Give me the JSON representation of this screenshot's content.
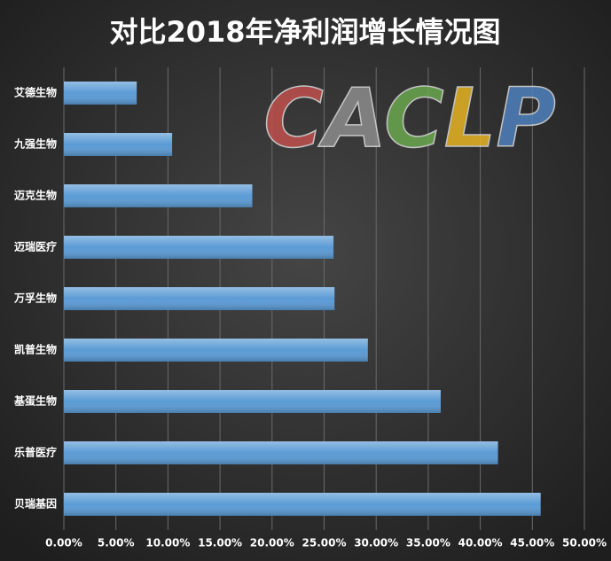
{
  "chart_data": {
    "type": "barh",
    "title": "对比2018年净利润增长情况图",
    "watermark": {
      "letters": [
        "C",
        "A",
        "C",
        "L",
        "P"
      ],
      "colors": [
        "#c0504d",
        "#8c8c8c",
        "#6aa84f",
        "#e6b422",
        "#4f81bd"
      ]
    },
    "categories": [
      "艾德生物",
      "九强生物",
      "迈克生物",
      "迈瑞医疗",
      "万孚生物",
      "凯普生物",
      "基蛋生物",
      "乐普医疗",
      "贝瑞基因"
    ],
    "values": [
      7.0,
      10.4,
      18.1,
      25.9,
      26.0,
      29.2,
      36.2,
      41.7,
      45.8
    ],
    "color": "#5b9bd5",
    "xlim": [
      0,
      50
    ],
    "xticks": [
      {
        "value": 0,
        "label": "0.00%"
      },
      {
        "value": 5,
        "label": "5.00%"
      },
      {
        "value": 10,
        "label": "10.00%"
      },
      {
        "value": 15,
        "label": "15.00%"
      },
      {
        "value": 20,
        "label": "20.00%"
      },
      {
        "value": 25,
        "label": "25.00%"
      },
      {
        "value": 30,
        "label": "30.00%"
      },
      {
        "value": 35,
        "label": "35.00%"
      },
      {
        "value": 40,
        "label": "40.00%"
      },
      {
        "value": 45,
        "label": "45.00%"
      },
      {
        "value": 50,
        "label": "50.00%"
      }
    ],
    "grid": true
  }
}
